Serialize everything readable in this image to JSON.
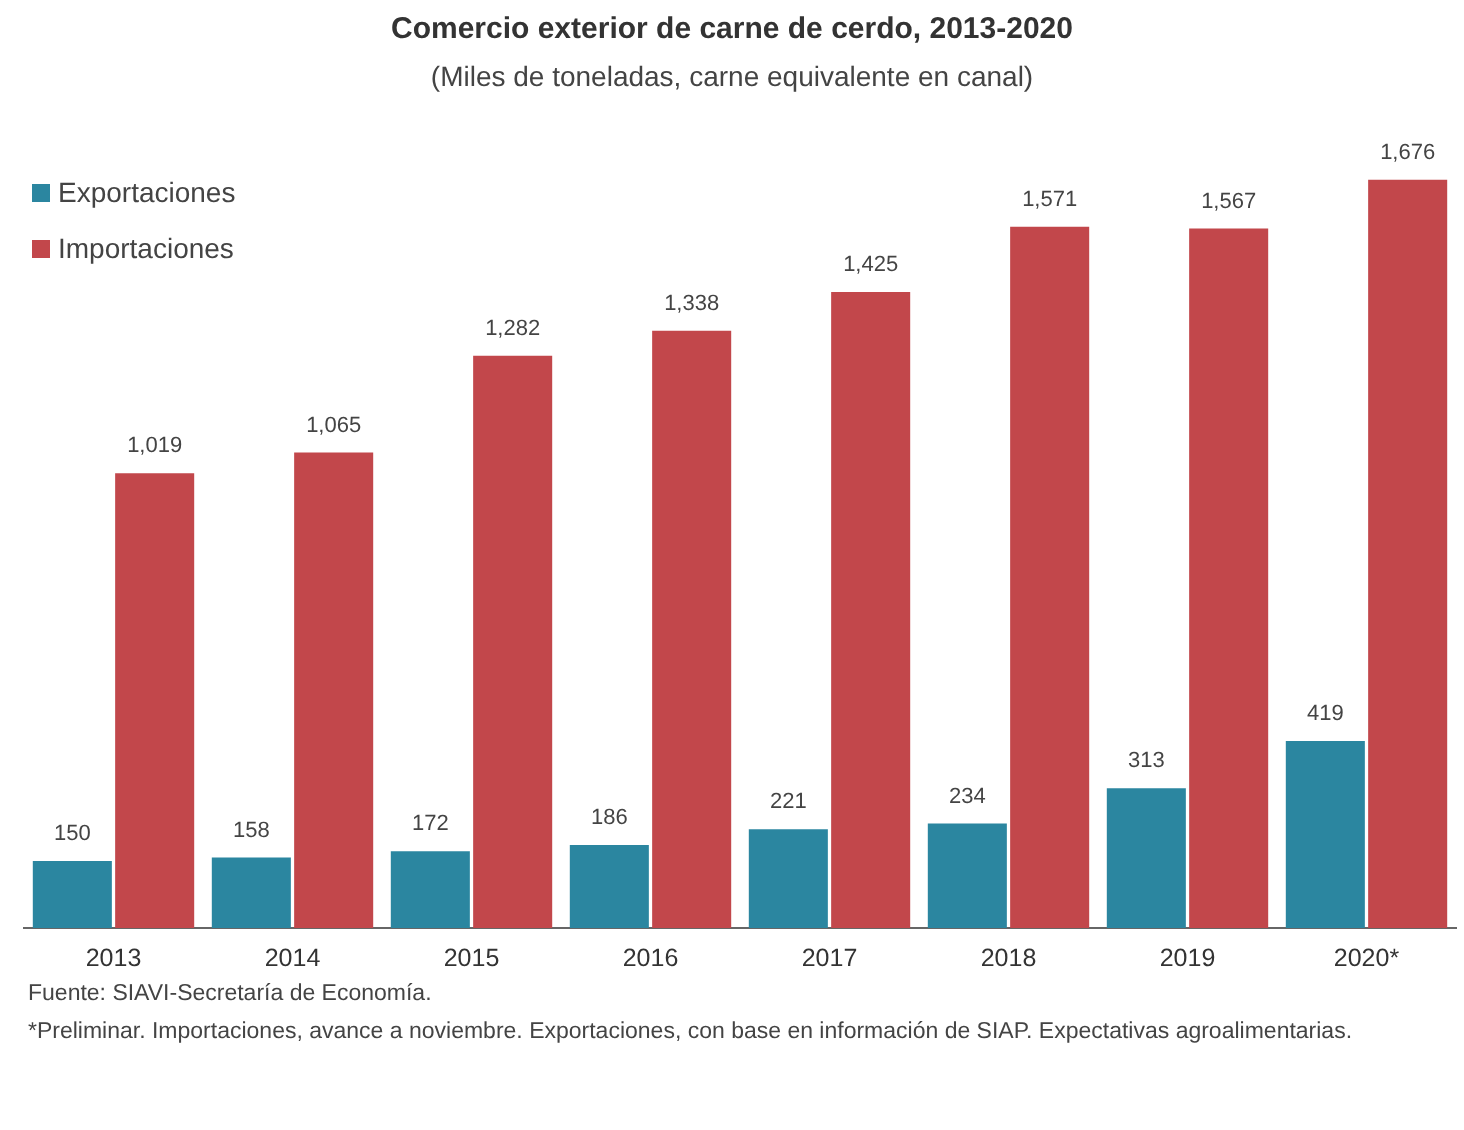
{
  "chart_data": {
    "type": "bar",
    "title": "Comercio exterior de carne de cerdo, 2013-2020",
    "subtitle": "(Miles de toneladas, carne equivalente en canal)",
    "categories": [
      "2013",
      "2014",
      "2015",
      "2016",
      "2017",
      "2018",
      "2019",
      "2020*"
    ],
    "series": [
      {
        "name": "Exportaciones",
        "color": "#2b86a0",
        "values": [
          150,
          158,
          172,
          186,
          221,
          234,
          313,
          419
        ],
        "value_labels": [
          "150",
          "158",
          "172",
          "186",
          "221",
          "234",
          "313",
          "419"
        ]
      },
      {
        "name": "Importaciones",
        "color": "#c2474b",
        "values": [
          1019,
          1065,
          1282,
          1338,
          1425,
          1571,
          1567,
          1676
        ],
        "value_labels": [
          "1,019",
          "1,065",
          "1,282",
          "1,338",
          "1,425",
          "1,571",
          "1,567",
          "1,676"
        ]
      }
    ],
    "legend": "top left",
    "annotations": [
      "Fuente: SIAVI-Secretaría de Economía.",
      "*Preliminar. Importaciones, avance a noviembre. Exportaciones, con base en información de SIAP. Expectativas agroalimentarias."
    ]
  }
}
